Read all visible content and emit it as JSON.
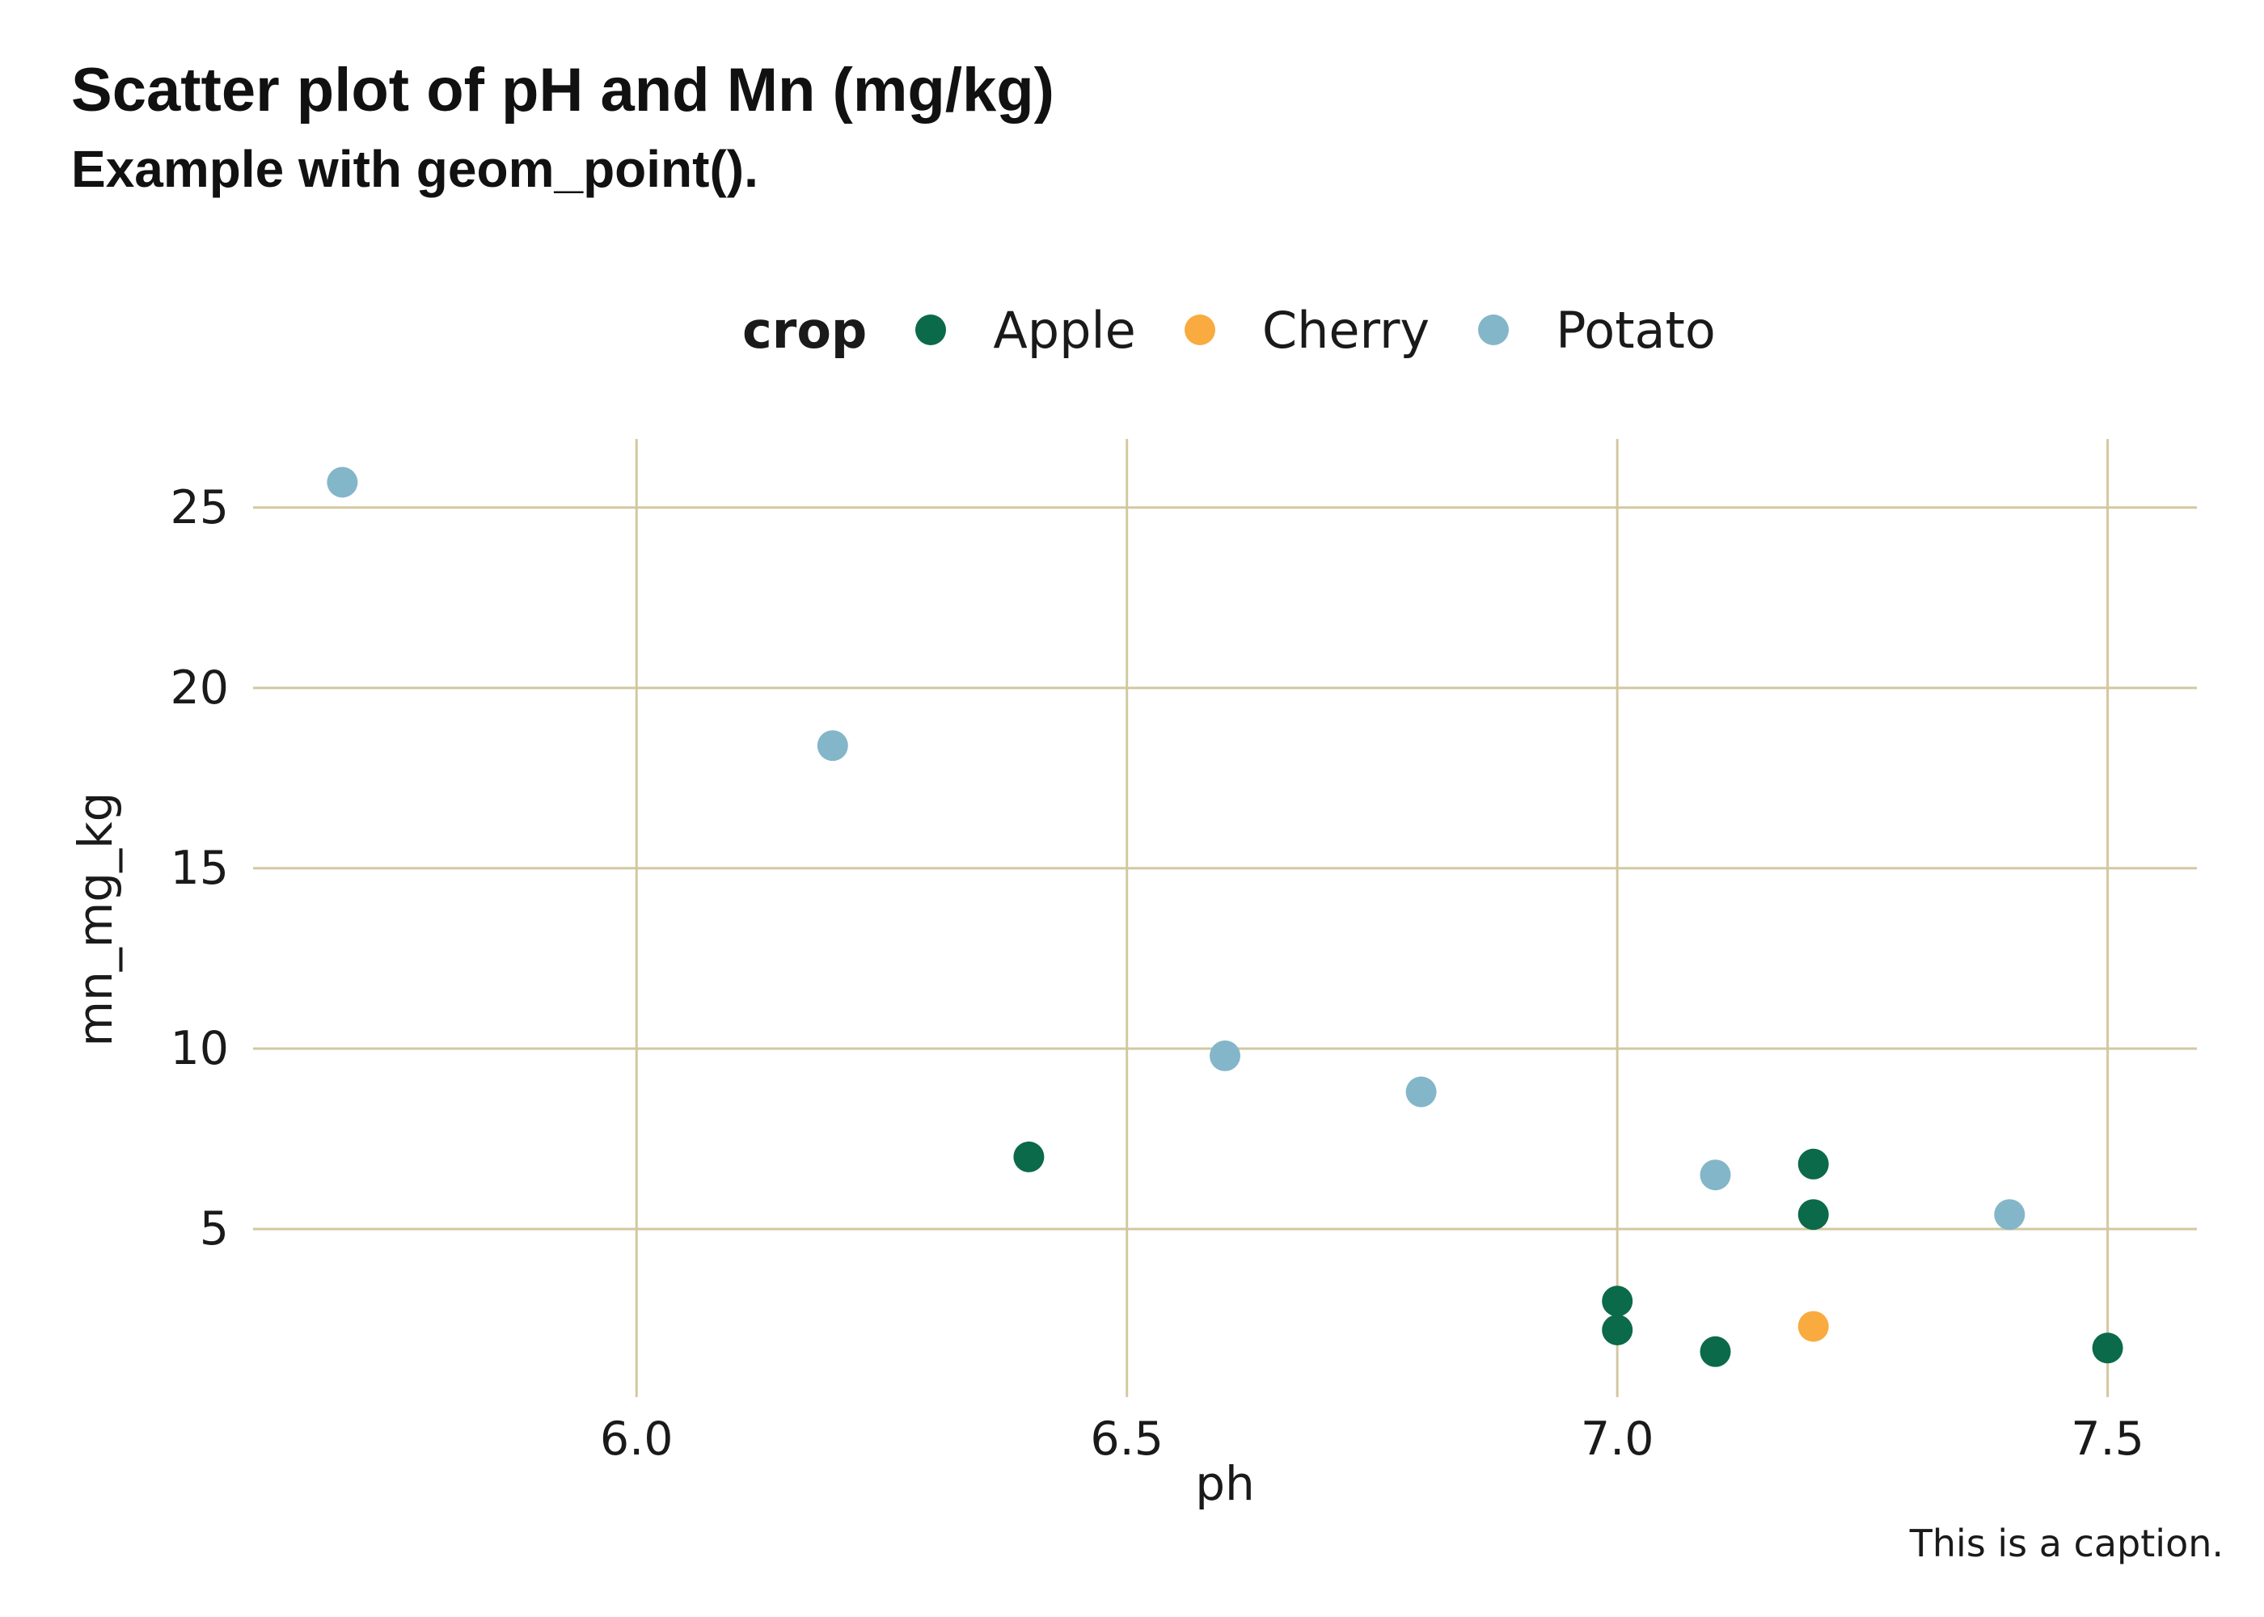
{
  "header": {
    "title": "Scatter plot of pH and Mn (mg/kg)",
    "subtitle": "Example with geom_point()."
  },
  "legend": {
    "title": "crop",
    "items": [
      {
        "label": "Apple",
        "color": "#0B6A4A"
      },
      {
        "label": "Cherry",
        "color": "#F9AB40"
      },
      {
        "label": "Potato",
        "color": "#83B6C9"
      }
    ]
  },
  "caption": "This is a caption.",
  "colors": {
    "background": "#FFFFFF",
    "gridline": "#D2C8A0",
    "text": "#1A1A1A",
    "apple": "#0B6A4A",
    "cherry": "#F9AB40",
    "potato": "#83B6C9"
  },
  "chart_data": {
    "type": "scatter",
    "title": "Scatter plot of pH and Mn (mg/kg)",
    "subtitle": "Example with geom_point().",
    "xlabel": "ph",
    "ylabel": "mn_mg_kg",
    "caption": "This is a caption.",
    "legend_title": "crop",
    "legend_position": "top",
    "grid": true,
    "xlim": [
      5.609,
      7.591
    ],
    "ylim": [
      0.34,
      26.9
    ],
    "x_ticks": [
      {
        "value": 6.0,
        "label": "6.0"
      },
      {
        "value": 6.5,
        "label": "6.5"
      },
      {
        "value": 7.0,
        "label": "7.0"
      },
      {
        "value": 7.5,
        "label": "7.5"
      }
    ],
    "y_ticks": [
      {
        "value": 5,
        "label": "5"
      },
      {
        "value": 10,
        "label": "10"
      },
      {
        "value": 15,
        "label": "15"
      },
      {
        "value": 20,
        "label": "20"
      },
      {
        "value": 25,
        "label": "25"
      }
    ],
    "series": [
      {
        "name": "Apple",
        "color": "#0B6A4A",
        "points": [
          {
            "x": 6.4,
            "y": 7.0
          },
          {
            "x": 7.0,
            "y": 3.0
          },
          {
            "x": 7.0,
            "y": 2.2
          },
          {
            "x": 7.1,
            "y": 1.6
          },
          {
            "x": 7.2,
            "y": 6.8
          },
          {
            "x": 7.2,
            "y": 5.4
          },
          {
            "x": 7.5,
            "y": 1.7
          }
        ]
      },
      {
        "name": "Cherry",
        "color": "#F9AB40",
        "points": [
          {
            "x": 7.2,
            "y": 2.3
          }
        ]
      },
      {
        "name": "Potato",
        "color": "#83B6C9",
        "points": [
          {
            "x": 5.7,
            "y": 25.7
          },
          {
            "x": 6.2,
            "y": 18.4
          },
          {
            "x": 6.6,
            "y": 9.8
          },
          {
            "x": 6.8,
            "y": 8.8
          },
          {
            "x": 7.1,
            "y": 6.5
          },
          {
            "x": 7.4,
            "y": 5.4
          }
        ]
      }
    ]
  }
}
